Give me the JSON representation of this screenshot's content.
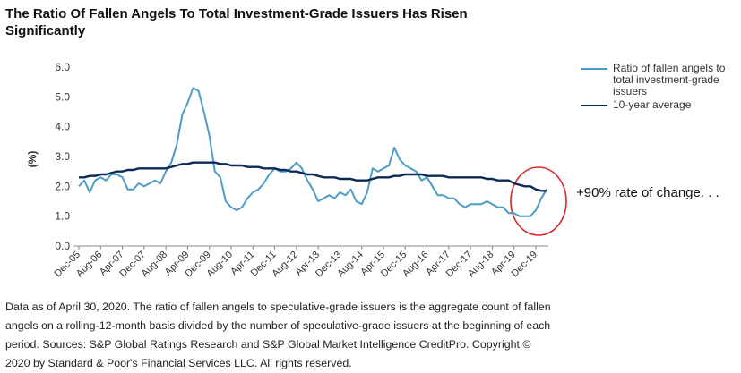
{
  "chart_data": {
    "type": "line",
    "title": "The Ratio Of Fallen Angels To Total Investment-Grade Issuers Has Risen Significantly",
    "y_label": "(%)",
    "annotation": "+90% rate of change. . .",
    "footnote": "Data as of April 30, 2020. The ratio of fallen angels to speculative-grade issuers is the aggregate count of fallen angels on a rolling-12-month basis divided by the number of speculative-grade issuers at the beginning of each period. Sources: S&P Global Ratings Research and S&P Global Market Intelligence CreditPro. Copyright © 2020 by Standard & Poor's Financial Services LLC. All rights reserved.",
    "categories": [
      "Dec-05",
      null,
      null,
      null,
      "Aug-06",
      null,
      null,
      null,
      "Apr-07",
      null,
      null,
      null,
      "Dec-07",
      null,
      null,
      null,
      "Aug-08",
      null,
      null,
      null,
      "Apr-09",
      null,
      null,
      null,
      "Dec-09",
      null,
      null,
      null,
      "Aug-10",
      null,
      null,
      null,
      "Apr-11",
      null,
      null,
      null,
      "Dec-11",
      null,
      null,
      null,
      "Aug-12",
      null,
      null,
      null,
      "Apr-13",
      null,
      null,
      null,
      "Dec-13",
      null,
      null,
      null,
      "Aug-14",
      null,
      null,
      null,
      "Apr-15",
      null,
      null,
      null,
      "Dec-15",
      null,
      null,
      null,
      "Aug-16",
      null,
      null,
      null,
      "Apr-17",
      null,
      null,
      null,
      "Dec-17",
      null,
      null,
      null,
      "Aug-18",
      null,
      null,
      null,
      "Apr-19",
      null,
      null,
      null,
      "Dec-19",
      null,
      null
    ],
    "series": [
      {
        "name": "Ratio of fallen angels to total investment-grade issuers",
        "color": "#4c9cc7",
        "width": 2,
        "values": [
          2.0,
          2.2,
          1.8,
          2.2,
          2.3,
          2.2,
          2.4,
          2.4,
          2.3,
          1.9,
          1.9,
          2.1,
          2.0,
          2.1,
          2.2,
          2.1,
          2.5,
          2.8,
          3.4,
          4.4,
          4.8,
          5.3,
          5.2,
          4.5,
          3.7,
          2.5,
          2.3,
          1.5,
          1.3,
          1.2,
          1.3,
          1.6,
          1.8,
          1.9,
          2.1,
          2.4,
          2.6,
          2.5,
          2.5,
          2.6,
          2.8,
          2.6,
          2.2,
          1.9,
          1.5,
          1.6,
          1.7,
          1.6,
          1.8,
          1.7,
          1.9,
          1.5,
          1.4,
          1.8,
          2.6,
          2.5,
          2.6,
          2.7,
          3.3,
          2.9,
          2.7,
          2.6,
          2.5,
          2.2,
          2.3,
          2.0,
          1.7,
          1.7,
          1.6,
          1.6,
          1.4,
          1.3,
          1.4,
          1.4,
          1.4,
          1.5,
          1.4,
          1.3,
          1.3,
          1.1,
          1.1,
          1.0,
          1.0,
          1.0,
          1.2,
          1.6,
          1.9
        ]
      },
      {
        "name": "10-year average",
        "color": "#0c2a58",
        "width": 2.4,
        "values": [
          2.3,
          2.3,
          2.35,
          2.35,
          2.4,
          2.4,
          2.45,
          2.5,
          2.5,
          2.55,
          2.55,
          2.6,
          2.6,
          2.6,
          2.6,
          2.6,
          2.6,
          2.65,
          2.7,
          2.75,
          2.75,
          2.8,
          2.8,
          2.8,
          2.8,
          2.8,
          2.75,
          2.75,
          2.7,
          2.7,
          2.7,
          2.65,
          2.65,
          2.65,
          2.6,
          2.6,
          2.6,
          2.55,
          2.55,
          2.5,
          2.5,
          2.45,
          2.4,
          2.4,
          2.35,
          2.3,
          2.3,
          2.3,
          2.25,
          2.25,
          2.25,
          2.2,
          2.2,
          2.2,
          2.25,
          2.3,
          2.3,
          2.3,
          2.35,
          2.35,
          2.4,
          2.4,
          2.4,
          2.4,
          2.35,
          2.35,
          2.35,
          2.35,
          2.3,
          2.3,
          2.3,
          2.3,
          2.3,
          2.3,
          2.3,
          2.25,
          2.25,
          2.2,
          2.2,
          2.2,
          2.1,
          2.05,
          2.0,
          2.0,
          1.9,
          1.85,
          1.85
        ]
      }
    ],
    "ylim": [
      0,
      6
    ],
    "yticks": [
      {
        "value": 0,
        "label": "0.0"
      },
      {
        "value": 1,
        "label": "1.0"
      },
      {
        "value": 2,
        "label": "2.0"
      },
      {
        "value": 3,
        "label": "3.0"
      },
      {
        "value": 4,
        "label": "4.0"
      },
      {
        "value": 5,
        "label": "5.0"
      },
      {
        "value": 6,
        "label": "6.0"
      }
    ],
    "grid": false,
    "legend": "right"
  }
}
